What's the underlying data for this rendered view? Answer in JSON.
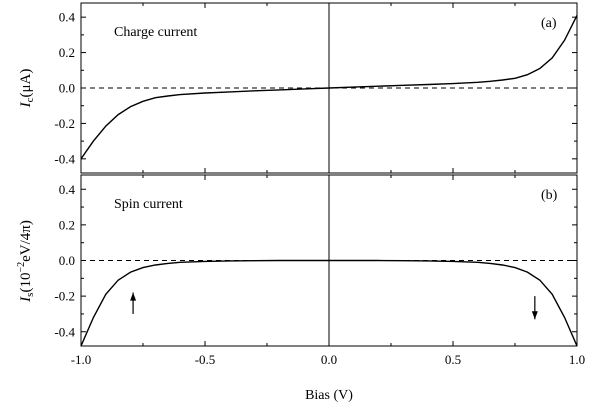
{
  "chart_data": [
    {
      "type": "line",
      "panel_label": "(a)",
      "annotation": "Charge current",
      "ylabel": {
        "symbol": "I",
        "sub": "c",
        "unit": "(μA)"
      },
      "xlabel": "Bias (V)",
      "xlim": [
        -1.0,
        1.0
      ],
      "ylim": [
        -0.48,
        0.48
      ],
      "yticks": [
        "-0.4",
        "-0.2",
        "0.0",
        "0.2",
        "0.4"
      ],
      "ytick_values": [
        -0.4,
        -0.2,
        0.0,
        0.2,
        0.4
      ],
      "xticks": [],
      "zero_line": {
        "value": 0,
        "style": "dashed"
      },
      "vertical_line": {
        "x": 0.0
      },
      "series": [
        {
          "x": [
            -1.0,
            -0.95,
            -0.9,
            -0.85,
            -0.8,
            -0.75,
            -0.7,
            -0.65,
            -0.6,
            -0.5,
            -0.4,
            -0.3,
            -0.2,
            -0.1,
            0.0,
            0.1,
            0.2,
            0.3,
            0.4,
            0.5,
            0.6,
            0.65,
            0.7,
            0.75,
            0.8,
            0.85,
            0.9,
            0.95,
            1.0
          ],
          "y": [
            -0.4,
            -0.3,
            -0.215,
            -0.15,
            -0.105,
            -0.075,
            -0.055,
            -0.045,
            -0.037,
            -0.028,
            -0.022,
            -0.016,
            -0.011,
            -0.005,
            0.0,
            0.005,
            0.01,
            0.015,
            0.02,
            0.025,
            0.032,
            0.038,
            0.045,
            0.055,
            0.075,
            0.11,
            0.17,
            0.27,
            0.41
          ]
        }
      ]
    },
    {
      "type": "line",
      "panel_label": "(b)",
      "annotation": "Spin current",
      "ylabel": {
        "symbol": "I",
        "sub": "s",
        "unit_pre": "(10",
        "unit_sup": "−2",
        "unit_post": "eV/4π)"
      },
      "xlabel": "Bias (V)",
      "xlim": [
        -1.0,
        1.0
      ],
      "ylim": [
        -0.48,
        0.48
      ],
      "yticks": [
        "-0.4",
        "-0.2",
        "0.0",
        "0.2",
        "0.4"
      ],
      "ytick_values": [
        -0.4,
        -0.2,
        0.0,
        0.2,
        0.4
      ],
      "xticks": [
        "-1.0",
        "-0.5",
        "0.0",
        "0.5",
        "1.0"
      ],
      "xtick_values": [
        -1.0,
        -0.5,
        0.0,
        0.5,
        1.0
      ],
      "zero_line": {
        "value": 0,
        "style": "dashed"
      },
      "vertical_line": {
        "x": 0.0
      },
      "arrows": [
        {
          "x": -0.79,
          "y_from": -0.3,
          "y_to": -0.18,
          "direction": "up"
        },
        {
          "x": 0.83,
          "y_from": -0.2,
          "y_to": -0.33,
          "direction": "down"
        }
      ],
      "series": [
        {
          "x": [
            -1.0,
            -0.95,
            -0.9,
            -0.85,
            -0.8,
            -0.75,
            -0.7,
            -0.65,
            -0.6,
            -0.5,
            -0.4,
            -0.3,
            -0.2,
            -0.1,
            0.0,
            0.1,
            0.2,
            0.3,
            0.4,
            0.5,
            0.6,
            0.65,
            0.7,
            0.75,
            0.8,
            0.85,
            0.9,
            0.95,
            1.0
          ],
          "y": [
            -0.48,
            -0.32,
            -0.19,
            -0.11,
            -0.065,
            -0.04,
            -0.025,
            -0.016,
            -0.01,
            -0.005,
            -0.002,
            -0.001,
            0.0,
            0.0,
            0.0,
            0.0,
            0.0,
            -0.001,
            -0.002,
            -0.005,
            -0.01,
            -0.016,
            -0.025,
            -0.04,
            -0.065,
            -0.11,
            -0.19,
            -0.32,
            -0.48
          ]
        }
      ]
    }
  ]
}
